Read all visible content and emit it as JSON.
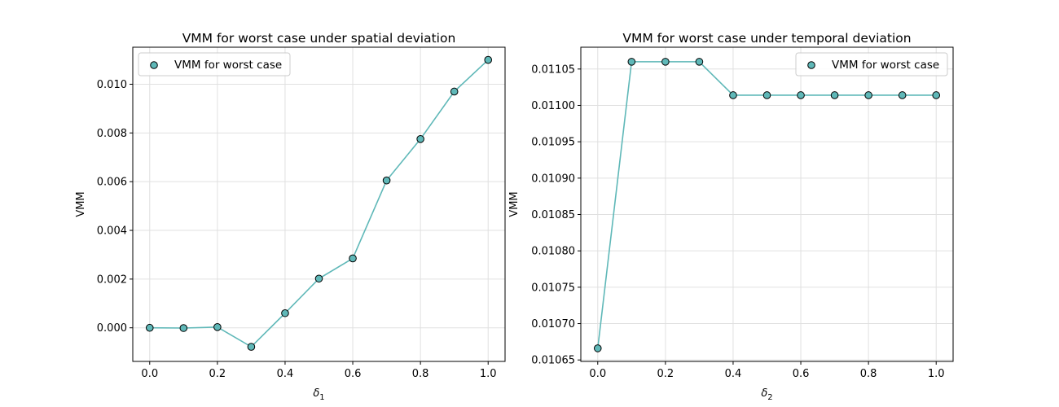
{
  "chart_data": [
    {
      "type": "line",
      "title": "VMM for worst case under spatial deviation",
      "xlabel_base": "δ",
      "xlabel_sub": "1",
      "ylabel": "VMM",
      "x": [
        0.0,
        0.1,
        0.2,
        0.3,
        0.4,
        0.5,
        0.6,
        0.7,
        0.8,
        0.9,
        1.0
      ],
      "series": [
        {
          "name": "VMM for worst case",
          "values": [
            0.0,
            -1e-05,
            3e-05,
            -0.00078,
            0.0006,
            0.00202,
            0.00285,
            0.00605,
            0.00775,
            0.0097,
            0.011
          ]
        }
      ],
      "xlim": [
        -0.05,
        1.05
      ],
      "ylim": [
        -0.00138,
        0.01152
      ],
      "xticks": [
        0.0,
        0.2,
        0.4,
        0.6,
        0.8,
        1.0
      ],
      "xtick_labels": [
        "0.0",
        "0.2",
        "0.4",
        "0.6",
        "0.8",
        "1.0"
      ],
      "yticks": [
        0.0,
        0.002,
        0.004,
        0.006,
        0.008,
        0.01
      ],
      "ytick_labels": [
        "0.000",
        "0.002",
        "0.004",
        "0.006",
        "0.008",
        "0.010"
      ],
      "legend_position": "upper-left",
      "grid": true,
      "colors": {
        "line": "#5fb8b8",
        "marker_fill": "#5fb8b8",
        "marker_edge": "#000000"
      }
    },
    {
      "type": "line",
      "title": "VMM for worst case under temporal deviation",
      "xlabel_base": "δ",
      "xlabel_sub": "2",
      "ylabel": "VMM",
      "x": [
        0.0,
        0.1,
        0.2,
        0.3,
        0.4,
        0.5,
        0.6,
        0.7,
        0.8,
        0.9,
        1.0
      ],
      "series": [
        {
          "name": "VMM for worst case",
          "values": [
            0.010666,
            0.01106,
            0.01106,
            0.01106,
            0.011014,
            0.011014,
            0.011014,
            0.011014,
            0.011014,
            0.011014,
            0.011014
          ]
        }
      ],
      "xlim": [
        -0.05,
        1.05
      ],
      "ylim": [
        0.010648,
        0.01108
      ],
      "xticks": [
        0.0,
        0.2,
        0.4,
        0.6,
        0.8,
        1.0
      ],
      "xtick_labels": [
        "0.0",
        "0.2",
        "0.4",
        "0.6",
        "0.8",
        "1.0"
      ],
      "yticks": [
        0.01065,
        0.0107,
        0.01075,
        0.0108,
        0.01085,
        0.0109,
        0.01095,
        0.011,
        0.01105
      ],
      "ytick_labels": [
        "0.01065",
        "0.01070",
        "0.01075",
        "0.01080",
        "0.01085",
        "0.01090",
        "0.01095",
        "0.01100",
        "0.01105"
      ],
      "legend_position": "upper-right",
      "grid": true,
      "colors": {
        "line": "#5fb8b8",
        "marker_fill": "#5fb8b8",
        "marker_edge": "#000000"
      }
    }
  ]
}
